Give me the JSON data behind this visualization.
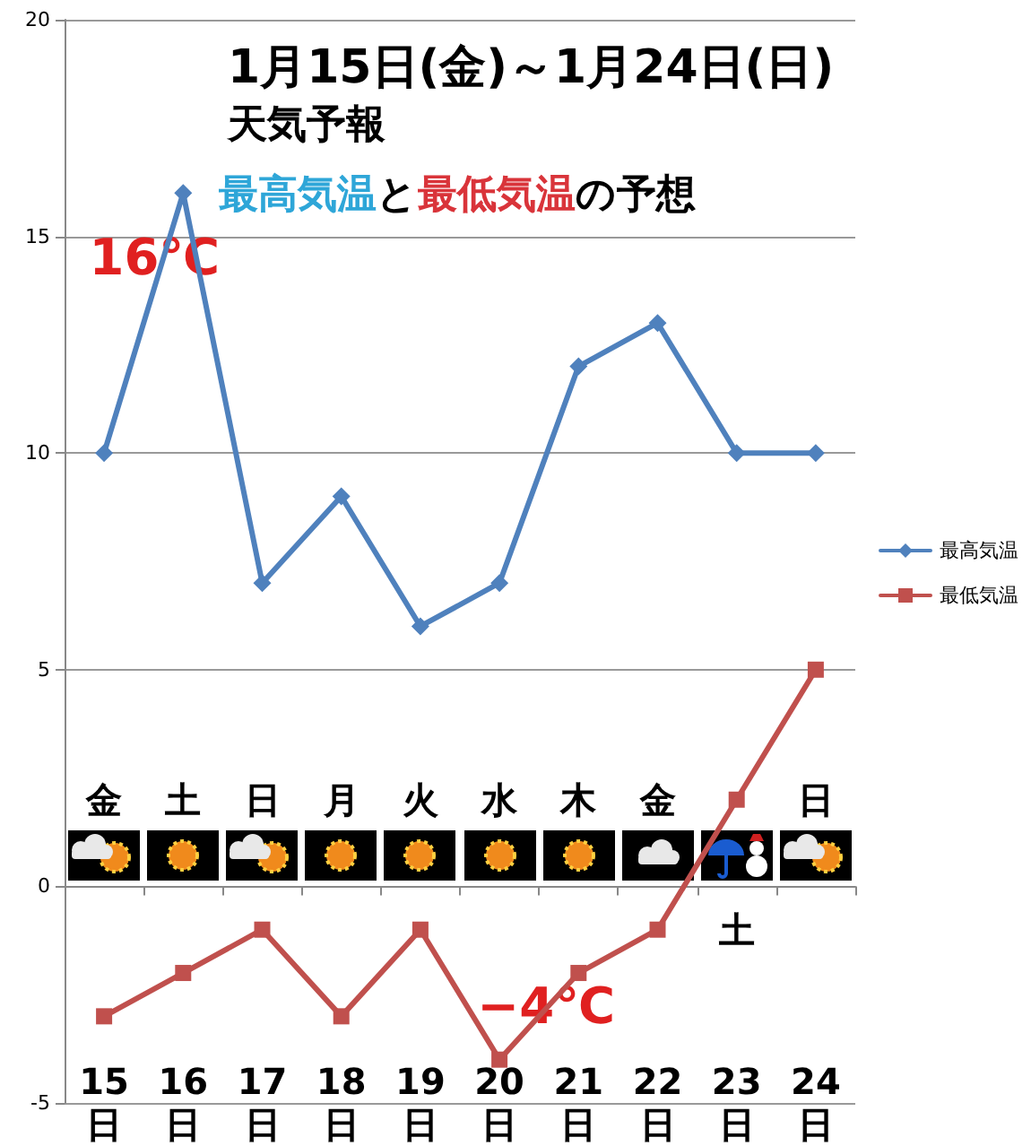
{
  "chart_data": {
    "type": "line",
    "title": "1月15日(金)～1月24日(日)",
    "subtitle": "天気予報",
    "categories": [
      "15\n日",
      "16\n日",
      "17\n日",
      "18\n日",
      "19\n日",
      "20\n日",
      "21\n日",
      "22\n日",
      "23\n日",
      "24\n日"
    ],
    "series": [
      {
        "name": "最高気温",
        "color": "#4f81bd",
        "marker": "diamond",
        "values": [
          10,
          16,
          7,
          9,
          6,
          7,
          12,
          13,
          10,
          10
        ]
      },
      {
        "name": "最低気温",
        "color": "#c0504d",
        "marker": "square",
        "values": [
          -3,
          -2,
          -1,
          -3,
          -1,
          -4,
          -2,
          -1,
          2,
          5
        ]
      }
    ],
    "ylim": [
      -5,
      20
    ],
    "yticks": [
      -5,
      0,
      5,
      10,
      15,
      20
    ],
    "grid": "y",
    "legend": "right",
    "annotations": [
      "最高気温と最低気温の予想",
      {
        "text": "16℃",
        "x": "16\n日",
        "y": 16
      },
      {
        "text": "−4℃",
        "x": "20\n日",
        "y": -4
      },
      "金",
      "土",
      "日",
      "月",
      "火",
      "水",
      "木",
      "金",
      "土",
      "日"
    ]
  }
}
